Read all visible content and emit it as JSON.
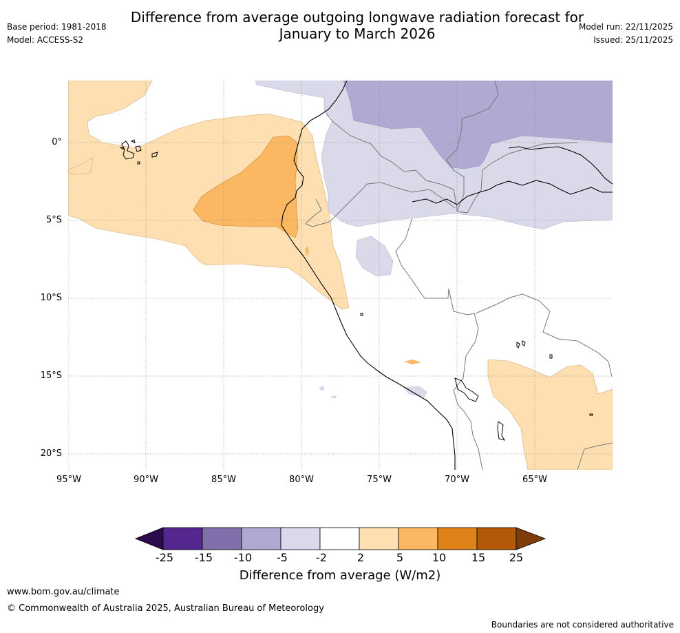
{
  "header": {
    "title_line1": "Difference from average outgoing longwave radiation forecast for",
    "title_line2": "January to March 2026",
    "base_period": "Base period: 1981-2018",
    "model": "Model: ACCESS-S2",
    "model_run": "Model run: 22/11/2025",
    "issued": "Issued: 25/11/2025"
  },
  "map": {
    "lat_labels": [
      "0°",
      "5°S",
      "10°S",
      "15°S",
      "20°S"
    ],
    "lon_labels": [
      "95°W",
      "90°W",
      "85°W",
      "80°W",
      "75°W",
      "70°W",
      "65°W"
    ]
  },
  "legend": {
    "ticks": [
      "-25",
      "-15",
      "-10",
      "-5",
      "-2",
      "2",
      "5",
      "10",
      "15",
      "25"
    ],
    "colors": [
      "#2d0a4e",
      "#54278f",
      "#806fab",
      "#b0aad2",
      "#d9d9ea",
      "#ffffff",
      "#fddfb2",
      "#fbb761",
      "#e0821a",
      "#b35806",
      "#7f3b08"
    ],
    "title": "Difference from average (W/m2)"
  },
  "footer": {
    "website": "www.bom.gov.au/climate",
    "copyright": "© Commonwealth of Australia 2025, Australian Bureau of Meteorology",
    "disclaimer": "Boundaries are not considered authoritative"
  }
}
